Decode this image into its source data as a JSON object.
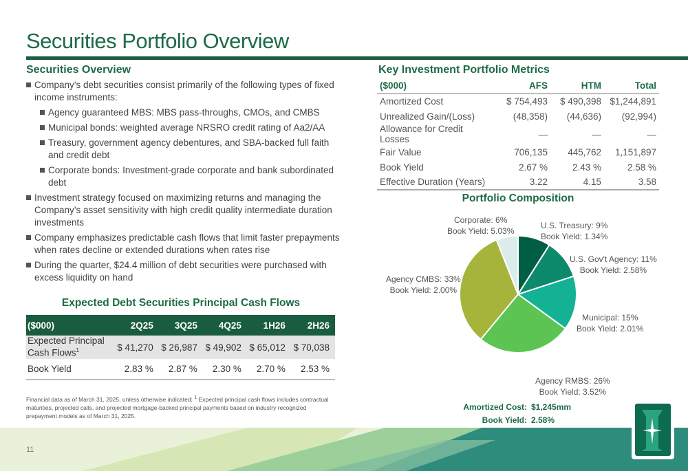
{
  "page": {
    "title": "Securities Portfolio Overview",
    "page_number": "11"
  },
  "overview": {
    "heading": "Securities Overview",
    "bullets": [
      {
        "text": "Company’s debt securities consist primarily of the following types of fixed income instruments:",
        "level": 1
      },
      {
        "text": "Agency guaranteed MBS: MBS pass-throughs, CMOs, and CMBS",
        "level": 2
      },
      {
        "text": "Municipal bonds: weighted average NRSRO credit rating of Aa2/AA",
        "level": 2
      },
      {
        "text": "Treasury, government agency debentures, and SBA-backed full faith and credit debt",
        "level": 2
      },
      {
        "text": "Corporate bonds: Investment-grade corporate and bank subordinated debt",
        "level": 2
      },
      {
        "text": "Investment strategy focused on maximizing returns and managing the Company’s asset sensitivity with high credit quality intermediate duration investments",
        "level": 1
      },
      {
        "text": "Company emphasizes predictable cash flows that limit faster prepayments when rates decline or extended durations when rates rise",
        "level": 1
      },
      {
        "text": "During the quarter, $24.4 million of debt securities were purchased with excess liquidity on hand",
        "level": 1
      }
    ]
  },
  "cash_flows": {
    "heading": "Expected Debt Securities Principal Cash Flows",
    "unit_label": "($000)",
    "columns": [
      "2Q25",
      "3Q25",
      "4Q25",
      "1H26",
      "2H26"
    ],
    "row1_label_line1": "Expected Principal",
    "row1_label_line2": "Cash Flows",
    "row1_sup": "1",
    "row1_values": [
      "$ 41,270",
      "$ 26,987",
      "$ 49,902",
      "$ 65,012",
      "$ 70,038"
    ],
    "row2_label": "Book Yield",
    "row2_values": [
      "2.83 %",
      "2.87 %",
      "2.30 %",
      "2.70 %",
      "2.53 %"
    ]
  },
  "footnote": {
    "text_a": "Financial data as of March 31, 2025, unless otherwise indicated; ",
    "sup": "1",
    "text_b": " Expected principal cash flows includes contractual maturities, projected calls, and projected mortgage-backed principal payments based on industry recognized prepayment models as of March 31, 2025."
  },
  "metrics": {
    "heading": "Key Investment Portfolio Metrics",
    "unit_label": "($000)",
    "columns": [
      "AFS",
      "HTM",
      "Total"
    ],
    "rows": [
      {
        "label": "Amortized Cost",
        "values": [
          "$ 754,493",
          "$ 490,398",
          "$1,244,891"
        ]
      },
      {
        "label": "Unrealized Gain/(Loss)",
        "values": [
          "(48,358)",
          "(44,636)",
          "(92,994)"
        ]
      },
      {
        "label": "Allowance for Credit Losses",
        "values": [
          "—",
          "—",
          "—"
        ]
      },
      {
        "label": "Fair Value",
        "values": [
          "706,135",
          "445,762",
          "1,151,897"
        ]
      },
      {
        "label": "Book Yield",
        "values": [
          "2.67 %",
          "2.43 %",
          "2.58 %"
        ]
      },
      {
        "label": "Effective Duration (Years)",
        "values": [
          "3.22",
          "4.15",
          "3.58"
        ]
      }
    ]
  },
  "composition": {
    "heading": "Portfolio Composition",
    "amortized_cost_label": "Amortized Cost:",
    "amortized_cost_value": "$1,245mm",
    "book_yield_label": "Book Yield:",
    "book_yield_value": "2.58%"
  },
  "chart_data": {
    "type": "pie",
    "slices": [
      {
        "name": "U.S. Treasury: 9%",
        "yield": "Book Yield: 1.34%",
        "value": 9,
        "color": "#005e45"
      },
      {
        "name": "U.S. Gov't Agency: 11%",
        "yield": "Book Yield: 2.58%",
        "value": 11,
        "color": "#0d8a6c"
      },
      {
        "name": "Municipal: 15%",
        "yield": "Book Yield: 2.01%",
        "value": 15,
        "color": "#14b295"
      },
      {
        "name": "Agency RMBS: 26%",
        "yield": "Book Yield: 3.52%",
        "value": 26,
        "color": "#5bc452"
      },
      {
        "name": "Agency CMBS: 33%",
        "yield": "Book Yield: 2.00%",
        "value": 33,
        "color": "#a6b43c"
      },
      {
        "name": "Corporate: 6%",
        "yield": "Book Yield: 5.03%",
        "value": 6,
        "color": "#dcecea"
      }
    ]
  },
  "colors": {
    "brand_green": "#1d6b45",
    "rule_green": "#1a5c3f"
  }
}
